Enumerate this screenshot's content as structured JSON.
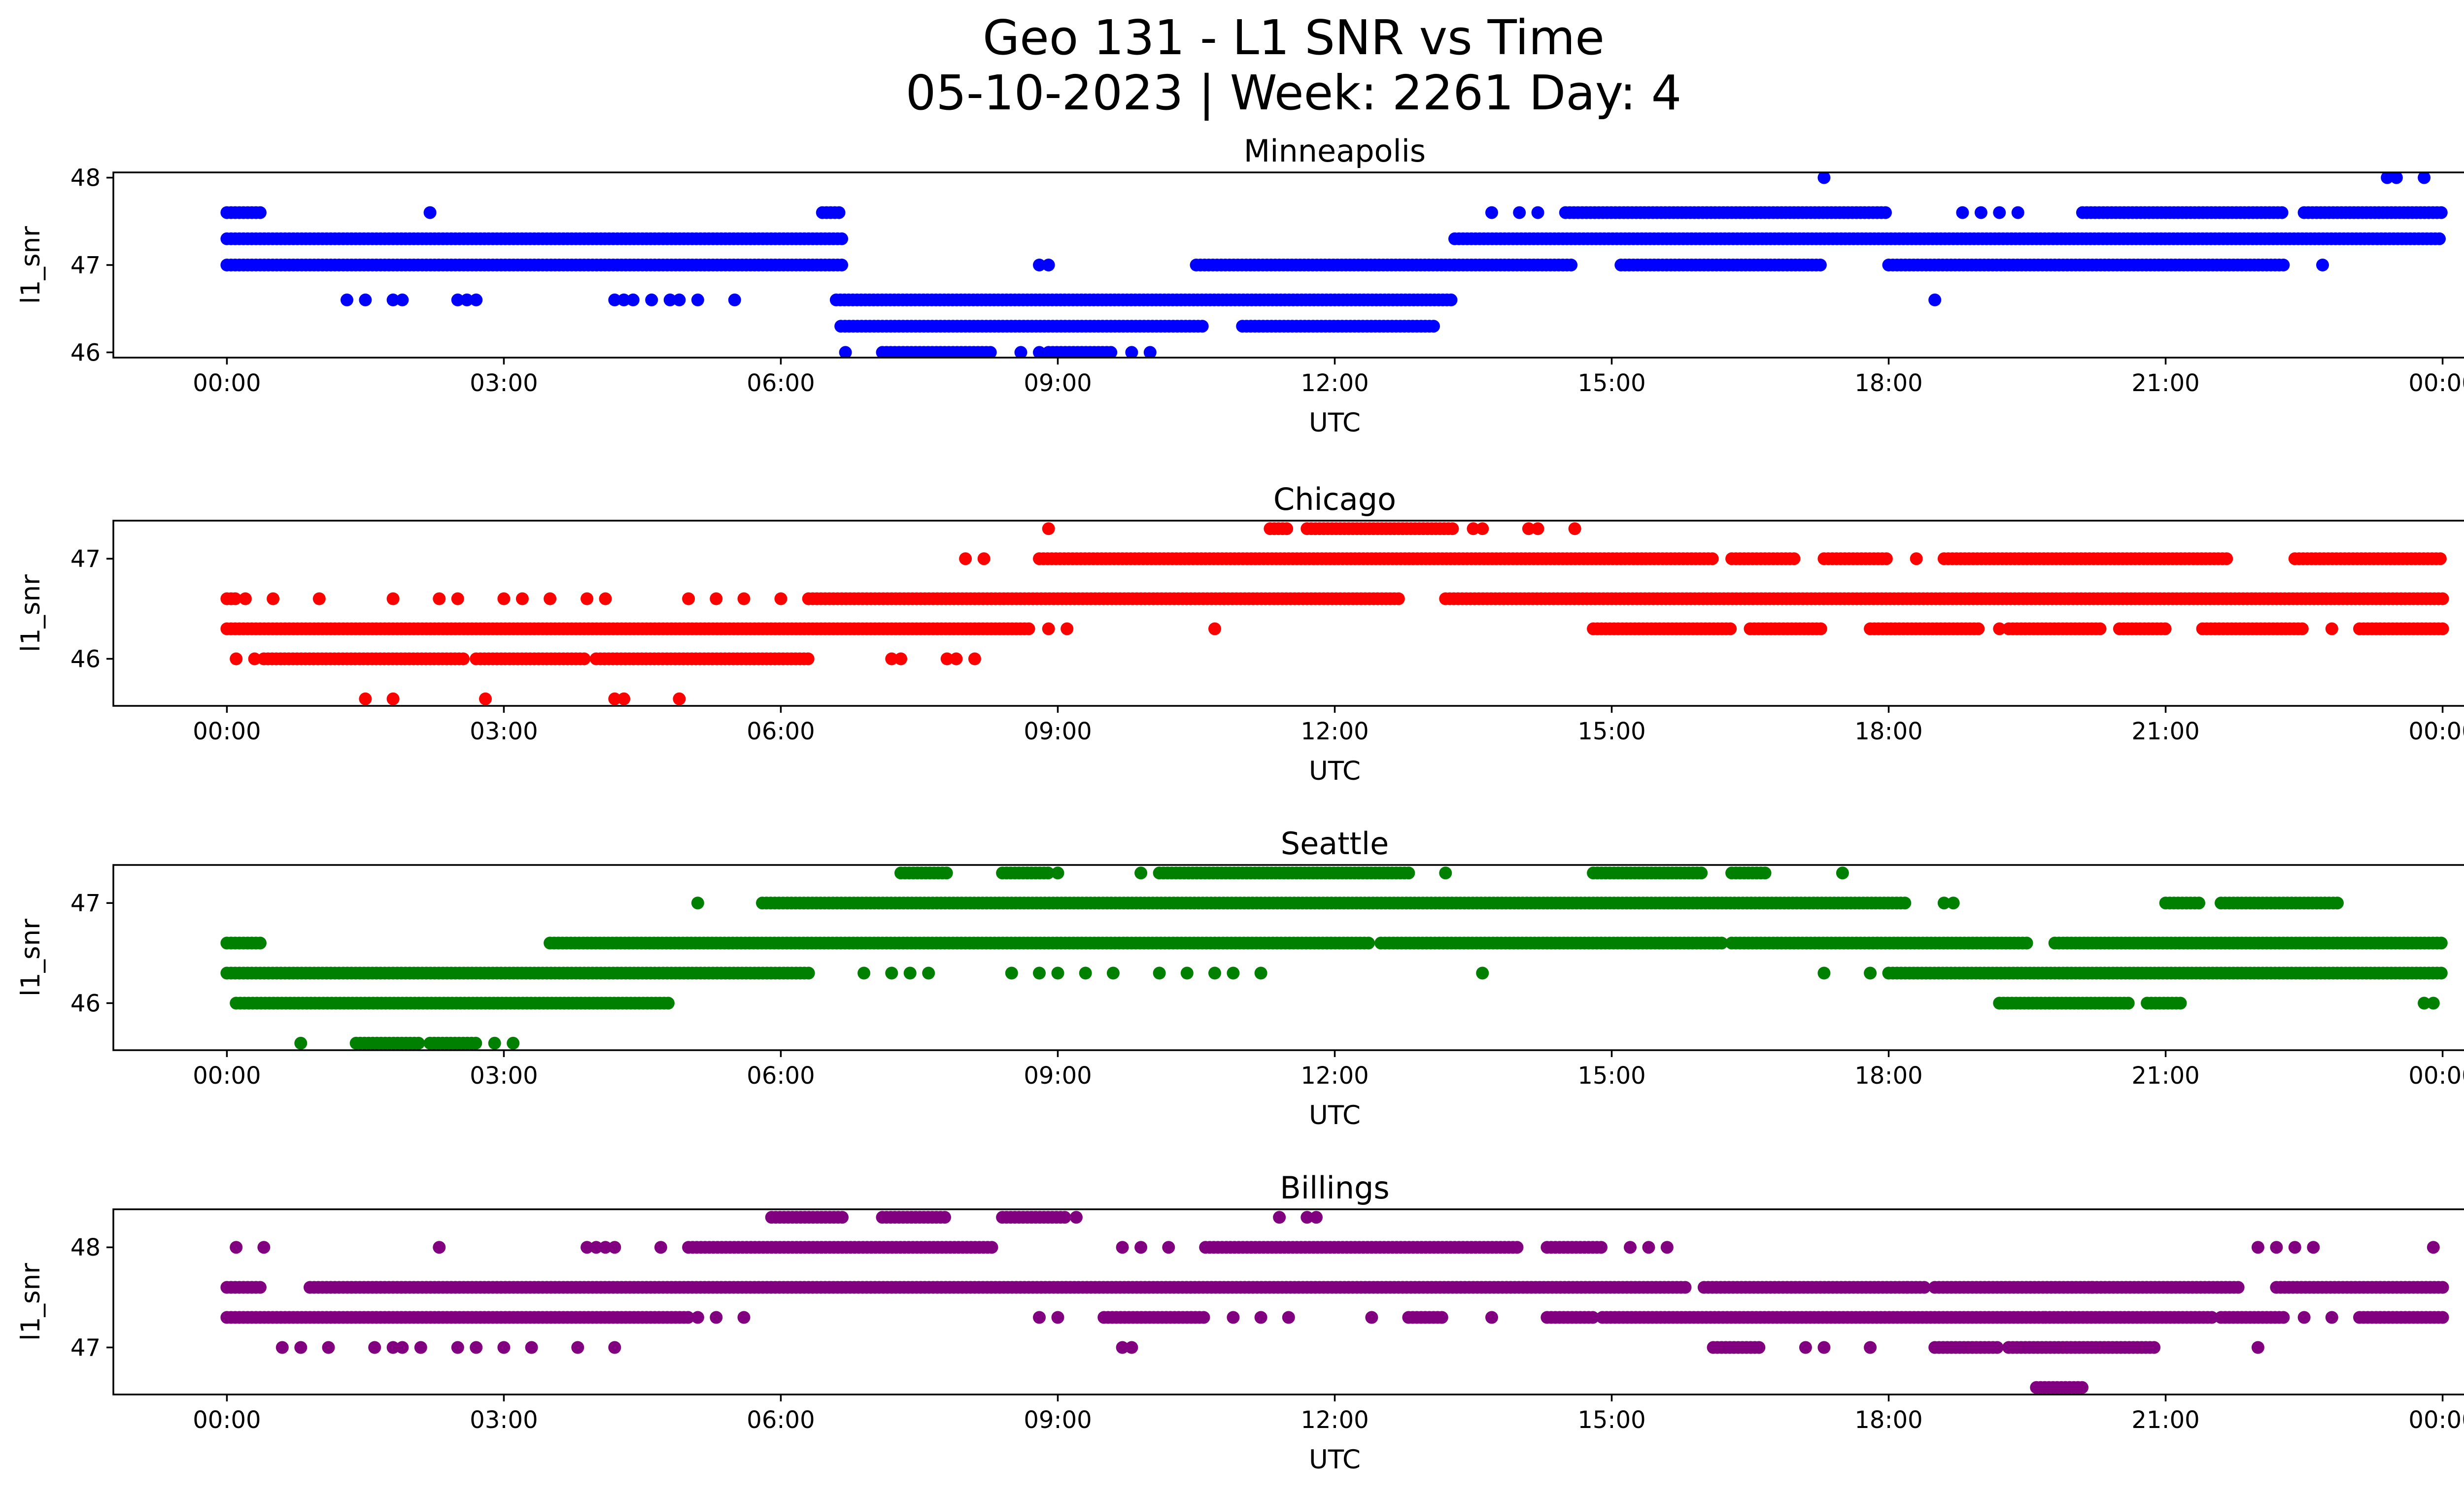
{
  "figure": {
    "title_line1": "Geo 131 - L1 SNR vs Time",
    "title_line2": "05-10-2023 | Week: 2261 Day: 4"
  },
  "chart_data": [
    {
      "type": "scatter",
      "title": "Minneapolis",
      "xlabel": "UTC",
      "ylabel": "l1_snr",
      "color": "#0000ff",
      "xlim_hours": [
        -1.23,
        25.23
      ],
      "ylim": [
        45.94,
        48.06
      ],
      "x_ticks": [
        "00:00",
        "03:00",
        "06:00",
        "09:00",
        "12:00",
        "15:00",
        "18:00",
        "21:00",
        "00:00"
      ],
      "y_ticks": [
        46,
        47,
        48
      ],
      "x_unit": "hours UTC",
      "segments": [
        {
          "y": 47.3,
          "ranges": [
            [
              0,
              6.7
            ],
            [
              13.3,
              24
            ]
          ]
        },
        {
          "y": 47.0,
          "ranges": [
            [
              0,
              6.7
            ],
            [
              10.5,
              13.3
            ],
            [
              13.3,
              14.6
            ],
            [
              15.1,
              17.3
            ],
            [
              18.0,
              22.3
            ]
          ]
        },
        {
          "y": 47.6,
          "ranges": [
            [
              0,
              0.4
            ],
            [
              6.45,
              6.65
            ],
            [
              14.5,
              18.0
            ],
            [
              20.1,
              22.3
            ],
            [
              22.5,
              24
            ]
          ]
        },
        {
          "y": 46.6,
          "ranges": [
            [
              6.6,
              13.3
            ]
          ]
        },
        {
          "y": 46.3,
          "ranges": [
            [
              6.65,
              10.6
            ],
            [
              11.0,
              13.1
            ]
          ]
        },
        {
          "y": 46.0,
          "ranges": [
            [
              7.1,
              8.3
            ],
            [
              8.9,
              9.6
            ]
          ]
        }
      ],
      "points": [
        {
          "x": 2.2,
          "y": 47.6
        },
        {
          "x": 13.7,
          "y": 47.6
        },
        {
          "x": 14.0,
          "y": 47.6
        },
        {
          "x": 14.2,
          "y": 47.6
        },
        {
          "x": 18.8,
          "y": 47.6
        },
        {
          "x": 19.0,
          "y": 47.6
        },
        {
          "x": 19.2,
          "y": 47.6
        },
        {
          "x": 19.4,
          "y": 47.6
        },
        {
          "x": 17.3,
          "y": 48.0
        },
        {
          "x": 23.4,
          "y": 48.0
        },
        {
          "x": 23.5,
          "y": 48.0
        },
        {
          "x": 23.8,
          "y": 48.0
        },
        {
          "x": 1.3,
          "y": 46.6
        },
        {
          "x": 1.5,
          "y": 46.6
        },
        {
          "x": 1.8,
          "y": 46.6
        },
        {
          "x": 1.9,
          "y": 46.6
        },
        {
          "x": 2.5,
          "y": 46.6
        },
        {
          "x": 2.6,
          "y": 46.6
        },
        {
          "x": 2.7,
          "y": 46.6
        },
        {
          "x": 4.2,
          "y": 46.6
        },
        {
          "x": 4.3,
          "y": 46.6
        },
        {
          "x": 4.4,
          "y": 46.6
        },
        {
          "x": 4.6,
          "y": 46.6
        },
        {
          "x": 4.8,
          "y": 46.6
        },
        {
          "x": 4.9,
          "y": 46.6
        },
        {
          "x": 5.1,
          "y": 46.6
        },
        {
          "x": 5.5,
          "y": 46.6
        },
        {
          "x": 18.5,
          "y": 46.6
        },
        {
          "x": 22.7,
          "y": 47.0
        },
        {
          "x": 6.7,
          "y": 46.0
        },
        {
          "x": 8.6,
          "y": 46.0
        },
        {
          "x": 8.8,
          "y": 46.0
        },
        {
          "x": 9.8,
          "y": 46.0
        },
        {
          "x": 10.0,
          "y": 46.0
        },
        {
          "x": 8.8,
          "y": 47.0
        },
        {
          "x": 8.9,
          "y": 47.0
        }
      ]
    },
    {
      "type": "scatter",
      "title": "Chicago",
      "xlabel": "UTC",
      "ylabel": "l1_snr",
      "color": "#ff0000",
      "xlim_hours": [
        -1.23,
        25.23
      ],
      "ylim": [
        45.53,
        47.38
      ],
      "x_ticks": [
        "00:00",
        "03:00",
        "06:00",
        "09:00",
        "12:00",
        "15:00",
        "18:00",
        "21:00",
        "00:00"
      ],
      "y_ticks": [
        46,
        47
      ],
      "x_unit": "hours UTC",
      "segments": [
        {
          "y": 46.3,
          "ranges": [
            [
              0,
              8.7
            ],
            [
              14.8,
              16.3
            ],
            [
              16.5,
              17.3
            ],
            [
              17.8,
              19.0
            ],
            [
              19.3,
              20.3
            ],
            [
              20.5,
              21.0
            ],
            [
              21.4,
              22.5
            ],
            [
              23.1,
              24
            ]
          ]
        },
        {
          "y": 46.6,
          "ranges": [
            [
              0,
              0.1
            ],
            [
              6.3,
              10.8
            ],
            [
              10.8,
              12.7
            ],
            [
              13.2,
              24
            ]
          ]
        },
        {
          "y": 47.0,
          "ranges": [
            [
              8.8,
              16.1
            ],
            [
              16.3,
              17.0
            ],
            [
              17.3,
              18.0
            ],
            [
              18.6,
              21.7
            ],
            [
              22.4,
              24
            ]
          ]
        },
        {
          "y": 46.0,
          "ranges": [
            [
              0.4,
              2.6
            ],
            [
              2.7,
              3.9
            ],
            [
              4.0,
              6.3
            ]
          ]
        },
        {
          "y": 47.3,
          "ranges": [
            [
              11.3,
              11.5
            ],
            [
              11.7,
              13.3
            ]
          ]
        }
      ],
      "points": [
        {
          "x": 0.2,
          "y": 46.6
        },
        {
          "x": 0.5,
          "y": 46.6
        },
        {
          "x": 1.0,
          "y": 46.6
        },
        {
          "x": 1.8,
          "y": 46.6
        },
        {
          "x": 2.3,
          "y": 46.6
        },
        {
          "x": 2.5,
          "y": 46.6
        },
        {
          "x": 3.0,
          "y": 46.6
        },
        {
          "x": 3.2,
          "y": 46.6
        },
        {
          "x": 3.5,
          "y": 46.6
        },
        {
          "x": 3.9,
          "y": 46.6
        },
        {
          "x": 4.1,
          "y": 46.6
        },
        {
          "x": 5.0,
          "y": 46.6
        },
        {
          "x": 5.3,
          "y": 46.6
        },
        {
          "x": 5.6,
          "y": 46.6
        },
        {
          "x": 6.0,
          "y": 46.6
        },
        {
          "x": 0.1,
          "y": 46.0
        },
        {
          "x": 0.3,
          "y": 46.0
        },
        {
          "x": 1.5,
          "y": 45.6
        },
        {
          "x": 1.8,
          "y": 45.6
        },
        {
          "x": 2.8,
          "y": 45.6
        },
        {
          "x": 4.2,
          "y": 45.6
        },
        {
          "x": 4.3,
          "y": 45.6
        },
        {
          "x": 4.9,
          "y": 45.6
        },
        {
          "x": 7.2,
          "y": 46.0
        },
        {
          "x": 7.3,
          "y": 46.0
        },
        {
          "x": 7.8,
          "y": 46.0
        },
        {
          "x": 7.9,
          "y": 46.0
        },
        {
          "x": 8.1,
          "y": 46.0
        },
        {
          "x": 8.9,
          "y": 46.3
        },
        {
          "x": 9.1,
          "y": 46.3
        },
        {
          "x": 10.7,
          "y": 46.3
        },
        {
          "x": 8.0,
          "y": 47.0
        },
        {
          "x": 8.2,
          "y": 47.0
        },
        {
          "x": 8.9,
          "y": 47.3
        },
        {
          "x": 13.5,
          "y": 47.3
        },
        {
          "x": 13.6,
          "y": 47.3
        },
        {
          "x": 14.1,
          "y": 47.3
        },
        {
          "x": 14.2,
          "y": 47.3
        },
        {
          "x": 14.6,
          "y": 47.3
        },
        {
          "x": 18.3,
          "y": 47.0
        },
        {
          "x": 19.2,
          "y": 46.3
        },
        {
          "x": 22.8,
          "y": 46.3
        }
      ]
    },
    {
      "type": "scatter",
      "title": "Seattle",
      "xlabel": "UTC",
      "ylabel": "l1_snr",
      "color": "#008000",
      "xlim_hours": [
        -1.23,
        25.23
      ],
      "ylim": [
        45.53,
        47.38
      ],
      "x_ticks": [
        "00:00",
        "03:00",
        "06:00",
        "09:00",
        "12:00",
        "15:00",
        "18:00",
        "21:00",
        "00:00"
      ],
      "y_ticks": [
        46,
        47
      ],
      "x_unit": "hours UTC",
      "segments": [
        {
          "y": 46.3,
          "ranges": [
            [
              0,
              6.3
            ],
            [
              18.0,
              24
            ]
          ]
        },
        {
          "y": 46.6,
          "ranges": [
            [
              0,
              0.4
            ],
            [
              3.5,
              12.4
            ],
            [
              12.5,
              16.2
            ],
            [
              16.3,
              19.5
            ],
            [
              19.8,
              24
            ]
          ]
        },
        {
          "y": 47.0,
          "ranges": [
            [
              5.8,
              18.2
            ],
            [
              21.0,
              21.4
            ],
            [
              21.6,
              22.9
            ]
          ]
        },
        {
          "y": 46.0,
          "ranges": [
            [
              0.1,
              4.8
            ],
            [
              19.2,
              20.6
            ],
            [
              20.8,
              21.2
            ]
          ]
        },
        {
          "y": 47.3,
          "ranges": [
            [
              7.3,
              7.8
            ],
            [
              8.4,
              8.9
            ],
            [
              10.1,
              12.8
            ],
            [
              14.8,
              16.0
            ],
            [
              16.3,
              16.7
            ]
          ]
        },
        {
          "y": 45.6,
          "ranges": [
            [
              1.4,
              2.1
            ],
            [
              2.2,
              2.7
            ]
          ]
        }
      ],
      "points": [
        {
          "x": 0.8,
          "y": 45.6
        },
        {
          "x": 2.9,
          "y": 45.6
        },
        {
          "x": 3.1,
          "y": 45.6
        },
        {
          "x": 5.1,
          "y": 47.0
        },
        {
          "x": 6.9,
          "y": 46.3
        },
        {
          "x": 7.2,
          "y": 46.3
        },
        {
          "x": 7.4,
          "y": 46.3
        },
        {
          "x": 7.6,
          "y": 46.3
        },
        {
          "x": 8.5,
          "y": 46.3
        },
        {
          "x": 8.8,
          "y": 46.3
        },
        {
          "x": 9.0,
          "y": 46.3
        },
        {
          "x": 9.3,
          "y": 46.3
        },
        {
          "x": 9.6,
          "y": 46.3
        },
        {
          "x": 10.1,
          "y": 46.3
        },
        {
          "x": 10.4,
          "y": 46.3
        },
        {
          "x": 10.7,
          "y": 46.3
        },
        {
          "x": 10.9,
          "y": 46.3
        },
        {
          "x": 11.2,
          "y": 46.3
        },
        {
          "x": 13.6,
          "y": 46.3
        },
        {
          "x": 17.3,
          "y": 46.3
        },
        {
          "x": 17.8,
          "y": 46.3
        },
        {
          "x": 9.0,
          "y": 47.3
        },
        {
          "x": 9.9,
          "y": 47.3
        },
        {
          "x": 13.2,
          "y": 47.3
        },
        {
          "x": 17.5,
          "y": 47.3
        },
        {
          "x": 18.6,
          "y": 47.0
        },
        {
          "x": 18.7,
          "y": 47.0
        },
        {
          "x": 23.8,
          "y": 46.0
        },
        {
          "x": 23.9,
          "y": 46.0
        }
      ]
    },
    {
      "type": "scatter",
      "title": "Billings",
      "xlabel": "UTC",
      "ylabel": "l1_snr",
      "color": "#800080",
      "xlim_hours": [
        -1.23,
        25.23
      ],
      "ylim": [
        46.53,
        48.38
      ],
      "x_ticks": [
        "00:00",
        "03:00",
        "06:00",
        "09:00",
        "12:00",
        "15:00",
        "18:00",
        "21:00",
        "00:00"
      ],
      "y_ticks": [
        47,
        48
      ],
      "x_unit": "hours UTC",
      "segments": [
        {
          "y": 47.6,
          "ranges": [
            [
              0,
              0.4
            ],
            [
              0.9,
              15.8
            ],
            [
              16.0,
              18.4
            ],
            [
              18.5,
              21.8
            ],
            [
              22.2,
              24
            ]
          ]
        },
        {
          "y": 47.3,
          "ranges": [
            [
              0,
              5.0
            ],
            [
              9.5,
              10.6
            ],
            [
              12.8,
              13.2
            ],
            [
              14.3,
              14.8
            ],
            [
              14.9,
              19.7
            ],
            [
              19.7,
              21.5
            ],
            [
              21.6,
              22.3
            ],
            [
              23.1,
              24
            ]
          ]
        },
        {
          "y": 48.0,
          "ranges": [
            [
              5.0,
              8.3
            ],
            [
              10.6,
              14.0
            ],
            [
              14.3,
              14.9
            ]
          ]
        },
        {
          "y": 48.3,
          "ranges": [
            [
              5.9,
              6.7
            ],
            [
              7.1,
              7.8
            ],
            [
              8.4,
              9.1
            ]
          ]
        },
        {
          "y": 47.0,
          "ranges": [
            [
              16.1,
              16.6
            ],
            [
              18.5,
              19.2
            ],
            [
              19.3,
              20.9
            ]
          ]
        },
        {
          "y": 46.6,
          "ranges": [
            [
              19.6,
              20.1
            ]
          ]
        }
      ],
      "points": [
        {
          "x": 0.1,
          "y": 48.0
        },
        {
          "x": 0.4,
          "y": 48.0
        },
        {
          "x": 2.3,
          "y": 48.0
        },
        {
          "x": 3.9,
          "y": 48.0
        },
        {
          "x": 4.0,
          "y": 48.0
        },
        {
          "x": 4.1,
          "y": 48.0
        },
        {
          "x": 4.2,
          "y": 48.0
        },
        {
          "x": 4.7,
          "y": 48.0
        },
        {
          "x": 9.7,
          "y": 48.0
        },
        {
          "x": 9.9,
          "y": 48.0
        },
        {
          "x": 10.2,
          "y": 48.0
        },
        {
          "x": 22.0,
          "y": 48.0
        },
        {
          "x": 22.2,
          "y": 48.0
        },
        {
          "x": 22.4,
          "y": 48.0
        },
        {
          "x": 22.6,
          "y": 48.0
        },
        {
          "x": 23.9,
          "y": 48.0
        },
        {
          "x": 0.6,
          "y": 47.0
        },
        {
          "x": 0.8,
          "y": 47.0
        },
        {
          "x": 1.1,
          "y": 47.0
        },
        {
          "x": 1.6,
          "y": 47.0
        },
        {
          "x": 1.8,
          "y": 47.0
        },
        {
          "x": 1.9,
          "y": 47.0
        },
        {
          "x": 2.1,
          "y": 47.0
        },
        {
          "x": 2.5,
          "y": 47.0
        },
        {
          "x": 2.7,
          "y": 47.0
        },
        {
          "x": 3.0,
          "y": 47.0
        },
        {
          "x": 3.3,
          "y": 47.0
        },
        {
          "x": 3.8,
          "y": 47.0
        },
        {
          "x": 4.2,
          "y": 47.0
        },
        {
          "x": 9.7,
          "y": 47.0
        },
        {
          "x": 9.8,
          "y": 47.0
        },
        {
          "x": 5.1,
          "y": 47.3
        },
        {
          "x": 5.3,
          "y": 47.3
        },
        {
          "x": 5.6,
          "y": 47.3
        },
        {
          "x": 8.8,
          "y": 47.3
        },
        {
          "x": 9.0,
          "y": 47.3
        },
        {
          "x": 10.9,
          "y": 47.3
        },
        {
          "x": 11.2,
          "y": 47.3
        },
        {
          "x": 11.5,
          "y": 47.3
        },
        {
          "x": 12.4,
          "y": 47.3
        },
        {
          "x": 13.7,
          "y": 47.3
        },
        {
          "x": 9.2,
          "y": 48.3
        },
        {
          "x": 11.4,
          "y": 48.3
        },
        {
          "x": 11.7,
          "y": 48.3
        },
        {
          "x": 11.8,
          "y": 48.3
        },
        {
          "x": 15.2,
          "y": 48.0
        },
        {
          "x": 15.4,
          "y": 48.0
        },
        {
          "x": 15.6,
          "y": 48.0
        },
        {
          "x": 17.1,
          "y": 47.0
        },
        {
          "x": 17.3,
          "y": 47.0
        },
        {
          "x": 17.8,
          "y": 47.0
        },
        {
          "x": 20.2,
          "y": 47.6
        },
        {
          "x": 18.2,
          "y": 47.6
        },
        {
          "x": 22.0,
          "y": 47.0
        },
        {
          "x": 22.5,
          "y": 47.3
        },
        {
          "x": 22.8,
          "y": 47.3
        }
      ]
    }
  ]
}
